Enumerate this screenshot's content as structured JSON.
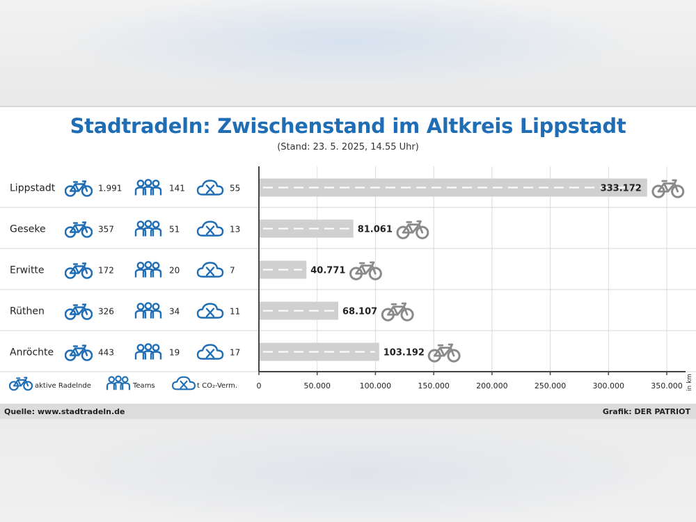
{
  "title": "Stadtradeln: Zwischenstand im Altkreis Lippstadt",
  "subtitle": "(Stand: 23. 5. 2025, 14.55 Uhr)",
  "source": "Quelle: www.stadtradeln.de",
  "credit": "Grafik: DER PATRIOT",
  "legend": {
    "riders": "aktive Radelnde",
    "teams": "Teams",
    "co2": "t CO₂-Verm."
  },
  "colors": {
    "title": "#1f6eb5",
    "icon": "#1f6eb5",
    "bar": "#d0d0d0",
    "bike_end": "#8a8a8a"
  },
  "rows": [
    {
      "town": "Lippstadt",
      "riders": "1.991",
      "teams": "141",
      "co2": "55"
    },
    {
      "town": "Geseke",
      "riders": "357",
      "teams": "51",
      "co2": "13"
    },
    {
      "town": "Erwitte",
      "riders": "172",
      "teams": "20",
      "co2": "7"
    },
    {
      "town": "Rüthen",
      "riders": "326",
      "teams": "34",
      "co2": "11"
    },
    {
      "town": "Anröchte",
      "riders": "443",
      "teams": "19",
      "co2": "17"
    }
  ],
  "chart_data": {
    "type": "bar",
    "orientation": "horizontal",
    "title": "Stadtradeln: Zwischenstand im Altkreis Lippstadt",
    "subtitle": "(Stand: 23. 5. 2025, 14.55 Uhr)",
    "unit_label": "in km",
    "categories": [
      "Lippstadt",
      "Geseke",
      "Erwitte",
      "Rüthen",
      "Anröchte"
    ],
    "values": [
      333172,
      81061,
      40771,
      68107,
      103192
    ],
    "value_labels": [
      "333.172",
      "81.061",
      "40.771",
      "68.107",
      "103.192"
    ],
    "xlim": [
      0,
      350000
    ],
    "ticks": [
      {
        "v": 0,
        "label": "0"
      },
      {
        "v": 50000,
        "label": "50.000"
      },
      {
        "v": 100000,
        "label": "100.000"
      },
      {
        "v": 150000,
        "label": "150.000"
      },
      {
        "v": 200000,
        "label": "200.000"
      },
      {
        "v": 250000,
        "label": "250.000"
      },
      {
        "v": 300000,
        "label": "300.000"
      },
      {
        "v": 350000,
        "label": "350.000"
      }
    ],
    "grid": true
  }
}
